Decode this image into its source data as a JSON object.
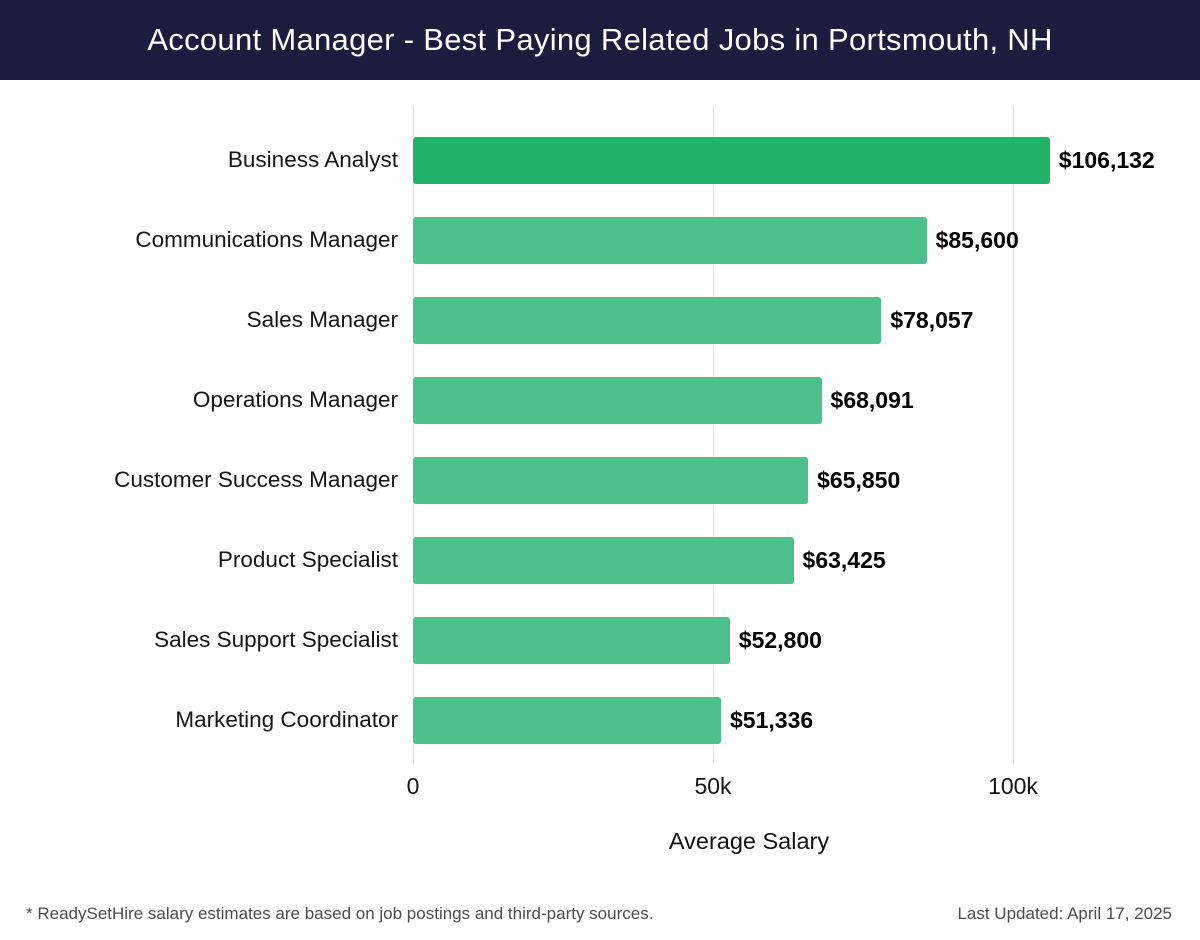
{
  "header": {
    "title": "Account Manager - Best Paying Related Jobs in Portsmouth, NH"
  },
  "colors": {
    "header_bg": "#1c1c3e",
    "header_text": "#ffffff",
    "bar": "#4cc08a",
    "bar_highlight": "#22b26a",
    "grid": "#e2e2e2",
    "footer_text": "#4d4d4d"
  },
  "chart_data": {
    "type": "bar",
    "orientation": "horizontal",
    "title": "Account Manager - Best Paying Related Jobs in Portsmouth, NH",
    "categories": [
      "Business Analyst",
      "Communications Manager",
      "Sales Manager",
      "Operations Manager",
      "Customer Success Manager",
      "Product Specialist",
      "Sales Support Specialist",
      "Marketing Coordinator"
    ],
    "values": [
      106132,
      85600,
      78057,
      68091,
      65850,
      63425,
      52800,
      51336
    ],
    "value_labels": [
      "$106,132",
      "$85,600",
      "$78,057",
      "$68,091",
      "$65,850",
      "$63,425",
      "$52,800",
      "$51,336"
    ],
    "xlabel": "Average Salary",
    "ylabel": "",
    "xlim": [
      0,
      112000
    ],
    "xticks": [
      {
        "value": 0,
        "label": "0"
      },
      {
        "value": 50000,
        "label": "50k"
      },
      {
        "value": 100000,
        "label": "100k"
      }
    ],
    "grid": "vertical",
    "legend": "none",
    "highlight_first_bar": true
  },
  "footer": {
    "note": "* ReadySetHire salary estimates are based on job postings and third-party sources.",
    "last_updated": "Last Updated: April 17, 2025"
  }
}
